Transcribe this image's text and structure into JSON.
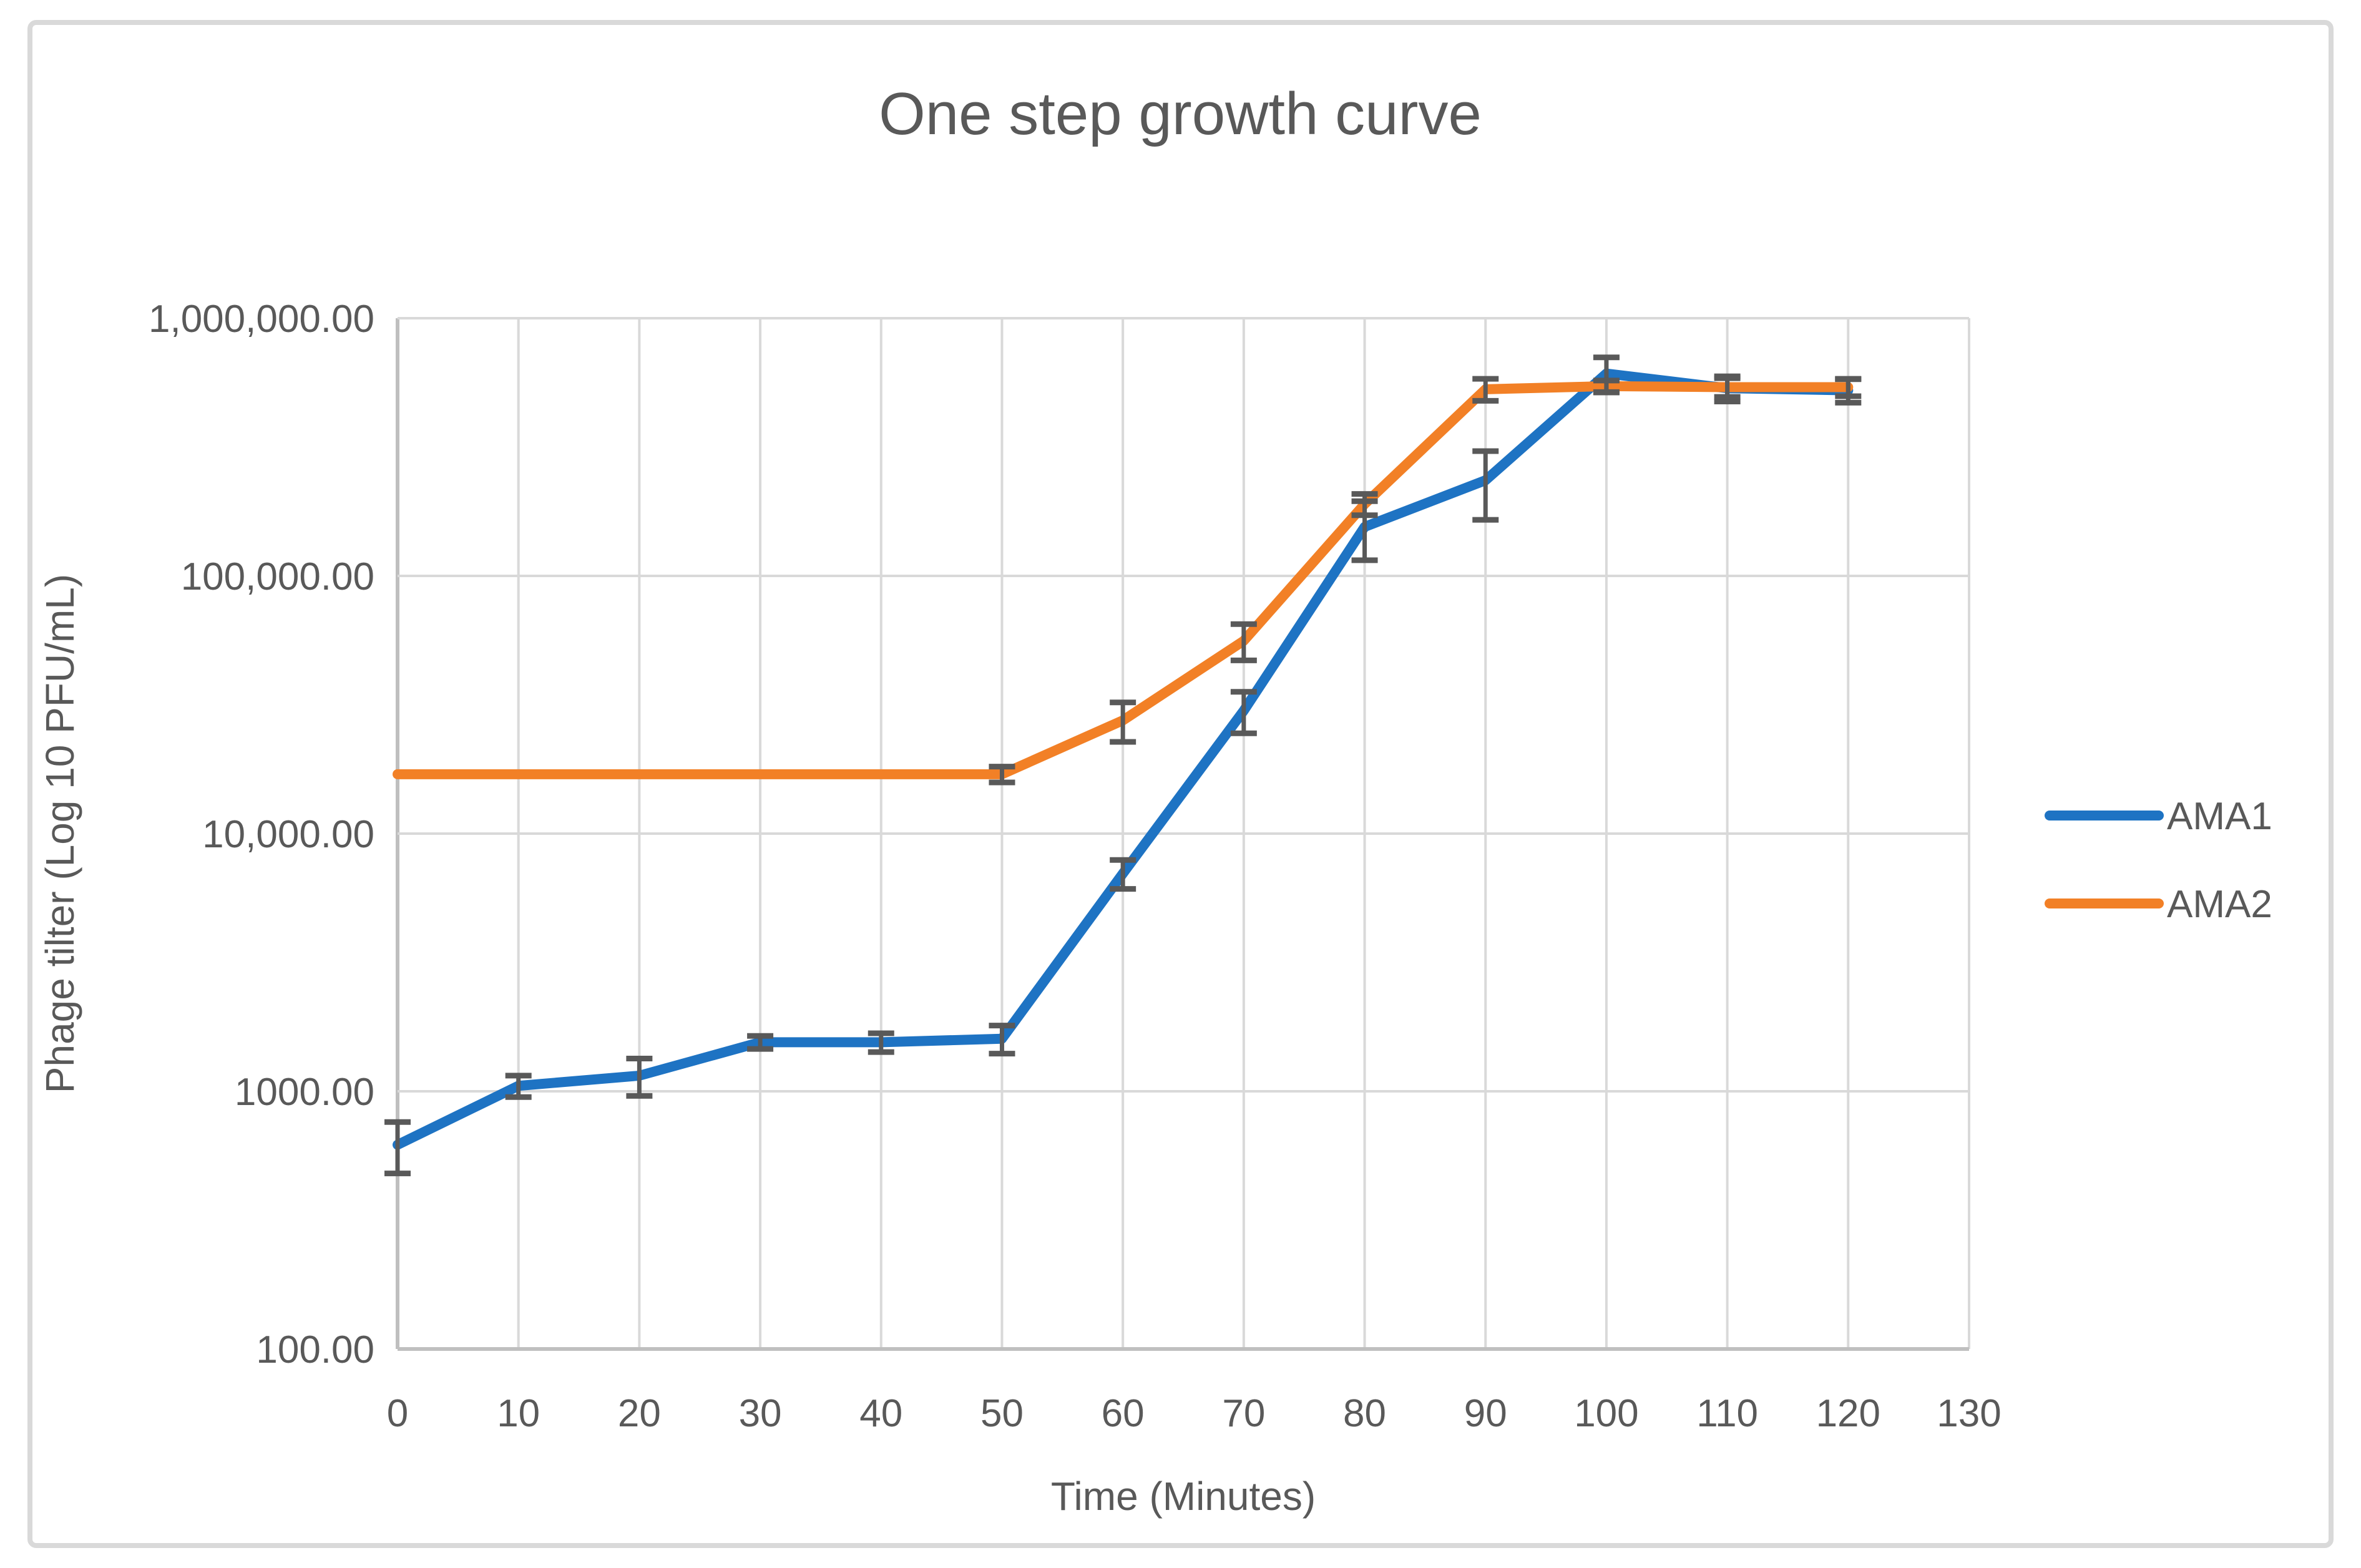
{
  "figure": {
    "background": "#ffffff",
    "border_color": "#d9d9d9"
  },
  "chart_data": {
    "type": "line",
    "title": "One step growth curve",
    "xlabel": "Time (Minutes)",
    "ylabel": "Phage tilter (Log 10 PFU/mL)",
    "grid": true,
    "legend_position": "right",
    "x_axis": {
      "min": 0,
      "max": 130,
      "tick_step": 10,
      "tick_labels": [
        "0",
        "10",
        "20",
        "30",
        "40",
        "50",
        "60",
        "70",
        "80",
        "90",
        "100",
        "110",
        "120",
        "130"
      ]
    },
    "y_axis": {
      "scale": "log",
      "min": 100,
      "max": 1000000,
      "ticks": [
        {
          "value": 100,
          "label": "100.00"
        },
        {
          "value": 1000,
          "label": "1000.00"
        },
        {
          "value": 10000,
          "label": "10,000.00"
        },
        {
          "value": 100000,
          "label": "100,000.00"
        },
        {
          "value": 1000000,
          "label": "1,000,000.00"
        }
      ]
    },
    "x": [
      0,
      10,
      20,
      30,
      40,
      50,
      60,
      70,
      80,
      90,
      100,
      110,
      120
    ],
    "series": [
      {
        "name": "AMA1",
        "color": "#1e73c3",
        "values": [
          620,
          1050,
          1150,
          1550,
          1550,
          1600,
          7000,
          30000,
          155000,
          235000,
          610000,
          535000,
          525000
        ],
        "errors": [
          140,
          100,
          190,
          90,
          130,
          200,
          900,
          5500,
          40000,
          70000,
          95000,
          60000,
          55000
        ]
      },
      {
        "name": "AMA2",
        "color": "#f28026",
        "values": [
          17000,
          17000,
          17000,
          17000,
          17000,
          17000,
          27500,
          56000,
          190000,
          530000,
          545000,
          540000,
          540000
        ],
        "errors": [
          0,
          0,
          0,
          0,
          0,
          1200,
          4800,
          9000,
          18000,
          52000,
          28000,
          45000,
          42000
        ]
      }
    ],
    "style": {
      "gridline_color": "#d9d9d9",
      "axis_line_color": "#bfbfbf",
      "error_bar_color": "#595959",
      "text_color": "#595959"
    }
  }
}
